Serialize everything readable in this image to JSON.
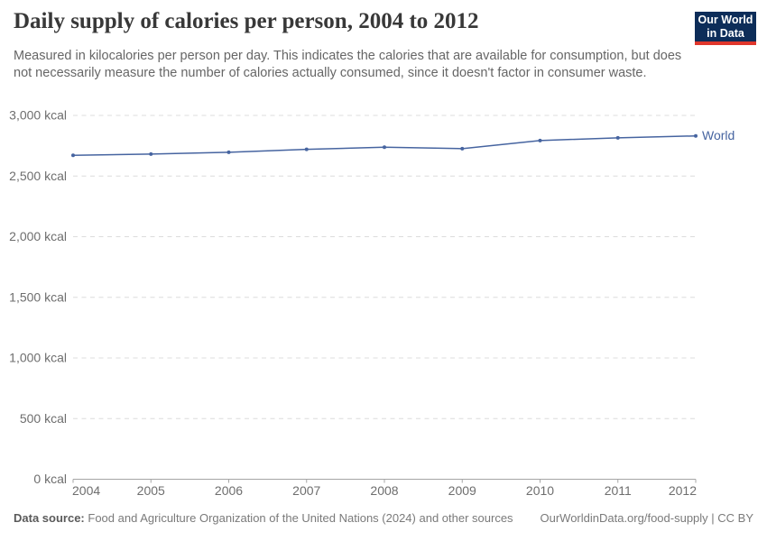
{
  "header": {
    "title": "Daily supply of calories per person, 2004 to 2012",
    "subtitle": "Measured in kilocalories per person per day. This indicates the calories that are available for consumption, but does not necessarily measure the number of calories actually consumed, since it doesn't factor in consumer waste.",
    "logo": {
      "line1": "Our World",
      "line2": "in Data",
      "bg_color": "#0d2d59",
      "accent_color": "#e0362c"
    }
  },
  "chart_data": {
    "type": "line",
    "title": "Daily supply of calories per person, 2004 to 2012",
    "categories": [
      "2004",
      "2005",
      "2006",
      "2007",
      "2008",
      "2009",
      "2010",
      "2011",
      "2012"
    ],
    "series": [
      {
        "name": "World",
        "color": "#4664a0",
        "values": [
          2671,
          2681,
          2696,
          2720,
          2738,
          2726,
          2793,
          2815,
          2831
        ]
      }
    ],
    "ylim": [
      0,
      3000
    ],
    "yticks": [
      {
        "value": 0,
        "label": "0 kcal"
      },
      {
        "value": 500,
        "label": "500 kcal"
      },
      {
        "value": 1000,
        "label": "1,000 kcal"
      },
      {
        "value": 1500,
        "label": "1,500 kcal"
      },
      {
        "value": 2000,
        "label": "2,000 kcal"
      },
      {
        "value": 2500,
        "label": "2,500 kcal"
      },
      {
        "value": 3000,
        "label": "3,000 kcal"
      }
    ],
    "ylabel": "",
    "xlabel": "",
    "grid": "horizontal-dashed",
    "legend": "line-end-label"
  },
  "footer": {
    "source_label": "Data source:",
    "source_text": "Food and Agriculture Organization of the United Nations (2024) and other sources",
    "credit": "OurWorldinData.org/food-supply | CC BY"
  }
}
